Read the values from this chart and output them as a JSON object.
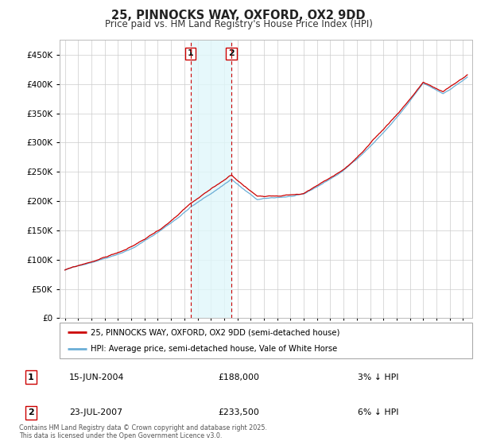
{
  "title": "25, PINNOCKS WAY, OXFORD, OX2 9DD",
  "subtitle": "Price paid vs. HM Land Registry's House Price Index (HPI)",
  "legend_line1": "25, PINNOCKS WAY, OXFORD, OX2 9DD (semi-detached house)",
  "legend_line2": "HPI: Average price, semi-detached house, Vale of White Horse",
  "footnote": "Contains HM Land Registry data © Crown copyright and database right 2025.\nThis data is licensed under the Open Government Licence v3.0.",
  "transaction1_date": "15-JUN-2004",
  "transaction1_price": "£188,000",
  "transaction1_hpi": "3% ↓ HPI",
  "transaction2_date": "23-JUL-2007",
  "transaction2_price": "£233,500",
  "transaction2_hpi": "6% ↓ HPI",
  "ylim": [
    0,
    475000
  ],
  "yticks": [
    0,
    50000,
    100000,
    150000,
    200000,
    250000,
    300000,
    350000,
    400000,
    450000
  ],
  "hpi_color": "#6baed6",
  "price_color": "#cc0000",
  "marker1_x": 2004.46,
  "marker2_x": 2007.55,
  "background_color": "#ffffff",
  "grid_color": "#cccccc",
  "span_color": "#e0f7fa"
}
